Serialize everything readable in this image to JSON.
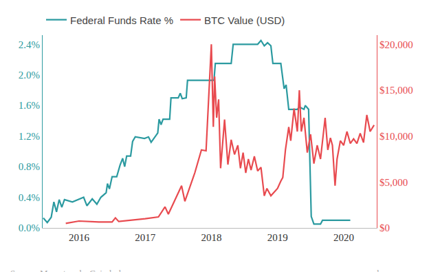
{
  "chart_data": {
    "type": "line",
    "source": "Source: Macrotrends, Coindesk",
    "credit": "manwardpress.com",
    "legend": "top left",
    "grid": false,
    "xlim": [
      2015.45,
      2020.5
    ],
    "xticks": [
      2016,
      2017,
      2018,
      2019,
      2020
    ],
    "ylim": [
      0,
      2.52
    ],
    "yticks": [
      {
        "value": 0,
        "label": "0.0%"
      },
      {
        "value": 0.4,
        "label": "0.4%"
      },
      {
        "value": 0.8,
        "label": "0.8%"
      },
      {
        "value": 1.2,
        "label": "1.2%"
      },
      {
        "value": 1.6,
        "label": "1.6%"
      },
      {
        "value": 2.0,
        "label": "2.0%"
      },
      {
        "value": 2.4,
        "label": "2.4%"
      }
    ],
    "y2lim": [
      0,
      21000
    ],
    "y2ticks": [
      {
        "value": 0,
        "label": "$0"
      },
      {
        "value": 5000,
        "label": "$5,000"
      },
      {
        "value": 10000,
        "label": "$10,000"
      },
      {
        "value": 15000,
        "label": "$15,000"
      },
      {
        "value": 20000,
        "label": "$20,000"
      }
    ],
    "series": [
      {
        "name": "Federal Funds Rate %",
        "color": "#2b9aa0",
        "axis": "y",
        "x": [
          2015.46,
          2015.52,
          2015.58,
          2015.62,
          2015.66,
          2015.7,
          2015.74,
          2015.78,
          2015.9,
          2016.07,
          2016.12,
          2016.2,
          2016.27,
          2016.33,
          2016.41,
          2016.43,
          2016.46,
          2016.5,
          2016.57,
          2016.62,
          2016.66,
          2016.69,
          2016.72,
          2016.78,
          2016.81,
          2016.85,
          2016.99,
          2017.05,
          2017.09,
          2017.14,
          2017.19,
          2017.21,
          2017.24,
          2017.27,
          2017.37,
          2017.39,
          2017.5,
          2017.53,
          2017.56,
          2017.62,
          2017.64,
          2018.04,
          2018.06,
          2018.3,
          2018.33,
          2018.7,
          2018.75,
          2018.8,
          2018.85,
          2018.9,
          2018.93,
          2019.05,
          2019.1,
          2019.13,
          2019.17,
          2019.3,
          2019.33,
          2019.4,
          2019.42,
          2019.47,
          2019.51,
          2019.55,
          2019.65,
          2019.68,
          2020.1
        ],
        "values": [
          0.13,
          0.07,
          0.14,
          0.34,
          0.21,
          0.37,
          0.27,
          0.37,
          0.34,
          0.4,
          0.29,
          0.38,
          0.31,
          0.4,
          0.46,
          0.58,
          0.51,
          0.67,
          0.67,
          0.82,
          0.91,
          0.8,
          0.94,
          0.94,
          1.13,
          1.19,
          1.17,
          1.19,
          1.12,
          1.18,
          1.24,
          1.42,
          1.35,
          1.42,
          1.42,
          1.7,
          1.7,
          1.76,
          1.69,
          1.7,
          1.93,
          1.93,
          2.15,
          2.15,
          2.4,
          2.4,
          2.45,
          2.38,
          2.42,
          2.38,
          2.15,
          2.15,
          1.82,
          1.87,
          1.55,
          1.55,
          1.58,
          1.55,
          1.6,
          1.55,
          0.15,
          0.05,
          0.05,
          0.1,
          0.1
        ]
      },
      {
        "name": "BTC Value (USD)",
        "color": "#e84a4f",
        "axis": "y2",
        "x": [
          2015.8,
          2016.0,
          2016.3,
          2016.5,
          2016.55,
          2016.6,
          2017.0,
          2017.2,
          2017.3,
          2017.35,
          2017.55,
          2017.6,
          2017.75,
          2017.85,
          2017.92,
          2018.0,
          2018.03,
          2018.05,
          2018.08,
          2018.11,
          2018.14,
          2018.2,
          2018.25,
          2018.3,
          2018.35,
          2018.4,
          2018.44,
          2018.48,
          2018.52,
          2018.56,
          2018.6,
          2018.65,
          2018.7,
          2018.75,
          2018.8,
          2018.84,
          2018.9,
          2018.96,
          2019.0,
          2019.05,
          2019.08,
          2019.12,
          2019.17,
          2019.2,
          2019.25,
          2019.3,
          2019.33,
          2019.36,
          2019.4,
          2019.45,
          2019.5,
          2019.55,
          2019.6,
          2019.65,
          2019.72,
          2019.76,
          2019.8,
          2019.83,
          2019.87,
          2019.9,
          2019.95,
          2020.0,
          2020.05,
          2020.1,
          2020.15,
          2020.2,
          2020.25,
          2020.3,
          2020.35,
          2020.4,
          2020.46
        ],
        "values": [
          500,
          750,
          650,
          650,
          1100,
          700,
          1000,
          1200,
          2300,
          1500,
          4600,
          2900,
          6000,
          8500,
          8400,
          20000,
          11000,
          16500,
          12000,
          14000,
          6500,
          11800,
          6900,
          9600,
          8000,
          9000,
          6500,
          8200,
          6000,
          7500,
          6300,
          7800,
          6200,
          6600,
          3500,
          4300,
          3500,
          4000,
          4300,
          5100,
          5500,
          8500,
          11000,
          9500,
          13000,
          10500,
          15000,
          10500,
          12000,
          8200,
          10200,
          7000,
          9000,
          7500,
          12000,
          8500,
          9800,
          9000,
          4600,
          7500,
          9500,
          9000,
          10500,
          9200,
          9700,
          9200,
          10300,
          9300,
          12300,
          10500,
          11200
        ]
      }
    ]
  }
}
